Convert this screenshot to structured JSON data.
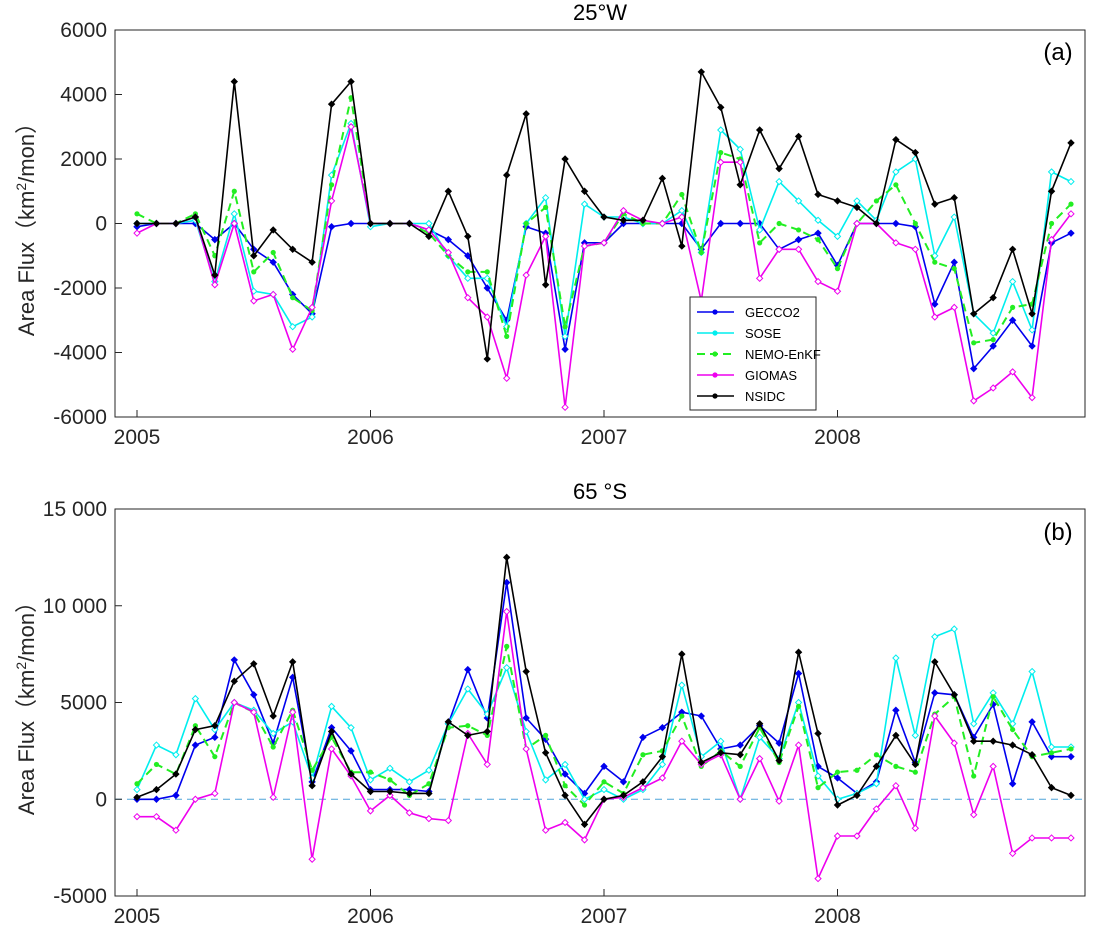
{
  "chart_data": [
    {
      "type": "line",
      "title": "25°W",
      "panel_label": "(a)",
      "ylabel": "Area Flux（km²/mon）",
      "ylabel_main": "Area Flux（km",
      "ylabel_sup": "2",
      "ylabel_end": "/mon）",
      "ylim": [
        -6000,
        6000
      ],
      "yticks": [
        -6000,
        -4000,
        -2000,
        0,
        2000,
        4000,
        6000
      ],
      "ytick_labels": [
        "-6000",
        "-4000",
        "-2000",
        "0",
        "2000",
        "4000",
        "6000"
      ],
      "xticks": [
        2005,
        2006,
        2007,
        2008
      ],
      "xtick_labels": [
        "2005",
        "2006",
        "2007",
        "2008"
      ],
      "xlim": [
        2005,
        2009
      ],
      "grid": false,
      "legend_position": "center-right",
      "series": [
        {
          "name": "GECCO2",
          "color": "#0000ee",
          "dash": "solid",
          "values": [
            -100,
            0,
            0,
            0,
            -500,
            0,
            -800,
            -1200,
            -2200,
            -2800,
            -100,
            0,
            0,
            0,
            0,
            -200,
            -500,
            -1000,
            -2000,
            -3000,
            -100,
            -300,
            -3900,
            -600,
            -600,
            0,
            0,
            0,
            0,
            -800,
            0,
            0,
            0,
            -800,
            -500,
            -300,
            -1300,
            0,
            0,
            0,
            -100,
            -2500,
            -1200,
            -4500,
            -3800,
            -3000,
            -3800,
            -600,
            -300
          ]
        },
        {
          "name": "SOSE",
          "color": "#00eeee",
          "dash": "solid",
          "values": [
            0,
            0,
            0,
            100,
            -1800,
            300,
            -2100,
            -2200,
            -3200,
            -2900,
            1500,
            3100,
            -100,
            0,
            0,
            0,
            -1000,
            -1700,
            -1700,
            -3200,
            0,
            800,
            -3500,
            600,
            200,
            200,
            0,
            0,
            400,
            -900,
            2900,
            2300,
            -200,
            1300,
            700,
            100,
            -400,
            700,
            100,
            1600,
            2000,
            -1000,
            200,
            -2800,
            -3400,
            -1800,
            -3300,
            1600,
            1300
          ]
        },
        {
          "name": "NEMO-EnKF",
          "color": "#22ee22",
          "dash": "dash",
          "values": [
            300,
            0,
            0,
            300,
            -1000,
            1000,
            -1500,
            -900,
            -2300,
            -2700,
            1200,
            3900,
            0,
            0,
            0,
            -300,
            -1000,
            -1500,
            -1500,
            -3500,
            0,
            500,
            -3200,
            -700,
            -600,
            300,
            0,
            0,
            900,
            -900,
            2200,
            2000,
            -600,
            0,
            -200,
            -500,
            -1400,
            0,
            700,
            1200,
            0,
            -1200,
            -1400,
            -3700,
            -3600,
            -2600,
            -2500,
            0,
            600
          ]
        },
        {
          "name": "GIOMAS",
          "color": "#ee00ee",
          "dash": "solid",
          "values": [
            -300,
            0,
            0,
            200,
            -1900,
            0,
            -2400,
            -2200,
            -3900,
            -2600,
            700,
            3000,
            0,
            0,
            0,
            -200,
            -900,
            -2300,
            -2900,
            -4800,
            -1600,
            -400,
            -5700,
            -700,
            -600,
            400,
            100,
            0,
            200,
            -2400,
            1900,
            1900,
            -1700,
            -800,
            -800,
            -1800,
            -2100,
            0,
            0,
            -600,
            -800,
            -2900,
            -2600,
            -5500,
            -5100,
            -4600,
            -5400,
            -500,
            300
          ]
        },
        {
          "name": "NSIDC",
          "color": "#000000",
          "dash": "solid",
          "values": [
            0,
            0,
            0,
            200,
            -1600,
            4400,
            -1000,
            -200,
            -800,
            -1200,
            3700,
            4400,
            0,
            0,
            0,
            -400,
            1000,
            -400,
            -4200,
            1500,
            3400,
            -1900,
            2000,
            1000,
            200,
            100,
            100,
            1400,
            -700,
            4700,
            3600,
            1200,
            2900,
            1700,
            2700,
            900,
            700,
            500,
            0,
            2600,
            2200,
            600,
            800,
            -2800,
            -2300,
            -800,
            -2800,
            1000,
            2500
          ]
        }
      ]
    },
    {
      "type": "line",
      "title": "65 °S",
      "panel_label": "(b)",
      "ylabel": "Area Flux（km²/mon）",
      "ylabel_main": "Area Flux（km",
      "ylabel_sup": "2",
      "ylabel_end": "/mon）",
      "ylim": [
        -5000,
        15000
      ],
      "yticks": [
        -5000,
        0,
        5000,
        10000,
        15000
      ],
      "ytick_labels": [
        "-5000",
        "0",
        "5000",
        "10 000",
        "15 000"
      ],
      "xticks": [
        2005,
        2006,
        2007,
        2008
      ],
      "xtick_labels": [
        "2005",
        "2006",
        "2007",
        "2008"
      ],
      "xlim": [
        2005,
        2009
      ],
      "grid": false,
      "zero_line": true,
      "series": [
        {
          "name": "GECCO2",
          "color": "#0000ee",
          "dash": "solid",
          "values": [
            0,
            0,
            200,
            2800,
            3200,
            7200,
            5400,
            2900,
            6300,
            900,
            3700,
            2500,
            500,
            500,
            500,
            400,
            3900,
            6700,
            4200,
            11200,
            4200,
            3100,
            1300,
            300,
            1700,
            900,
            3200,
            3700,
            4500,
            4300,
            2600,
            2800,
            3800,
            2900,
            6500,
            1700,
            1100,
            300,
            900,
            4600,
            1900,
            5500,
            5400,
            3200,
            4900,
            800,
            4000,
            2200,
            2200
          ]
        },
        {
          "name": "SOSE",
          "color": "#00eeee",
          "dash": "solid",
          "values": [
            500,
            2800,
            2300,
            5200,
            3600,
            5000,
            4600,
            3400,
            4000,
            1100,
            4800,
            3700,
            1000,
            1600,
            900,
            1500,
            3900,
            5700,
            4400,
            6800,
            3500,
            1000,
            1800,
            0,
            500,
            0,
            500,
            1800,
            5900,
            2200,
            3000,
            0,
            3200,
            2100,
            5000,
            1200,
            0,
            300,
            800,
            7300,
            3300,
            8400,
            8800,
            3900,
            5500,
            3900,
            6600,
            2700,
            2700
          ]
        },
        {
          "name": "NEMO-EnKF",
          "color": "#22ee22",
          "dash": "dash",
          "values": [
            800,
            1800,
            1300,
            3800,
            2200,
            5000,
            4500,
            2700,
            4600,
            1500,
            3200,
            1400,
            1400,
            1000,
            200,
            800,
            3700,
            3800,
            3300,
            7900,
            2600,
            3300,
            700,
            -300,
            900,
            300,
            2300,
            2500,
            4300,
            1700,
            2500,
            1700,
            3700,
            1900,
            4800,
            600,
            1400,
            1500,
            2300,
            1700,
            1400,
            4400,
            5300,
            1200,
            5300,
            3600,
            2200,
            2400,
            2600
          ]
        },
        {
          "name": "GIOMAS",
          "color": "#ee00ee",
          "dash": "solid",
          "values": [
            -900,
            -900,
            -1600,
            0,
            300,
            5000,
            4500,
            100,
            4500,
            -3100,
            2600,
            1200,
            -600,
            200,
            -700,
            -1000,
            -1100,
            3400,
            1800,
            9700,
            2600,
            -1600,
            -1200,
            -2100,
            0,
            100,
            600,
            1100,
            3000,
            1800,
            2300,
            0,
            2100,
            -100,
            2800,
            -4100,
            -1900,
            -1900,
            -500,
            700,
            -1500,
            4300,
            2900,
            -800,
            1700,
            -2800,
            -2000,
            -2000,
            -2000
          ]
        },
        {
          "name": "NSIDC",
          "color": "#000000",
          "dash": "solid",
          "values": [
            100,
            500,
            1300,
            3600,
            3800,
            6100,
            7000,
            4300,
            7100,
            700,
            3500,
            1300,
            400,
            400,
            300,
            300,
            4000,
            3300,
            3500,
            12500,
            6600,
            2400,
            200,
            -1300,
            0,
            200,
            900,
            2200,
            7500,
            1900,
            2400,
            2300,
            3900,
            2000,
            7600,
            3400,
            -300,
            200,
            1700,
            3300,
            1800,
            7100,
            5400,
            3000,
            3000,
            2800,
            2300,
            600,
            200
          ]
        }
      ]
    }
  ]
}
